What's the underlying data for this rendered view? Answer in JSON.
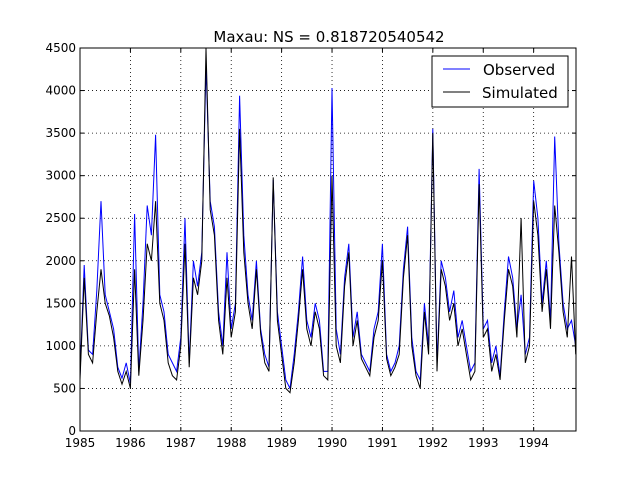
{
  "chart_data": {
    "type": "line",
    "title": "Maxau: NS = 0.818720540542",
    "xlabel": "",
    "ylabel": "",
    "xlim": [
      1985,
      1994.84
    ],
    "ylim": [
      0,
      4500
    ],
    "xticks": [
      "1985",
      "1986",
      "1987",
      "1988",
      "1989",
      "1990",
      "1991",
      "1992",
      "1993",
      "1994"
    ],
    "yticks": [
      "0",
      "500",
      "1000",
      "1500",
      "2000",
      "2500",
      "3000",
      "3500",
      "4000",
      "4500"
    ],
    "grid": true,
    "legend": "top-right",
    "resolution": "monthly",
    "series": [
      {
        "name": "Observed",
        "color": "#0000ff"
      },
      {
        "name": "Simulated",
        "color": "#000000"
      }
    ],
    "years": [
      {
        "year": 1985,
        "observed": [
          650,
          1950,
          950,
          900,
          1650,
          2700,
          1600,
          1400,
          1200,
          750,
          620,
          800
        ],
        "simulated": [
          600,
          1800,
          900,
          800,
          1400,
          1900,
          1500,
          1350,
          1100,
          700,
          550,
          700
        ]
      },
      {
        "year": 1986,
        "observed": [
          560,
          2550,
          700,
          1500,
          2650,
          2300,
          3480,
          1600,
          1400,
          900,
          800,
          700
        ],
        "simulated": [
          500,
          1900,
          650,
          1300,
          2200,
          2000,
          2700,
          1500,
          1300,
          800,
          650,
          600
        ]
      },
      {
        "year": 1987,
        "observed": [
          1100,
          2500,
          800,
          2000,
          1700,
          2100,
          4300,
          2700,
          2400,
          1400,
          1000,
          2100
        ],
        "simulated": [
          1000,
          2200,
          750,
          1800,
          1600,
          2000,
          4500,
          2600,
          2300,
          1300,
          900,
          1800
        ]
      },
      {
        "year": 1988,
        "observed": [
          1200,
          1500,
          3940,
          2300,
          1600,
          1300,
          2000,
          1200,
          900,
          750,
          2950,
          1400
        ],
        "simulated": [
          1100,
          1400,
          3550,
          2100,
          1500,
          1200,
          1900,
          1150,
          800,
          700,
          2980,
          1300
        ]
      },
      {
        "year": 1989,
        "observed": [
          1000,
          600,
          500,
          900,
          1400,
          2050,
          1300,
          1100,
          1500,
          1300,
          700,
          700
        ],
        "simulated": [
          900,
          500,
          450,
          800,
          1300,
          1900,
          1200,
          1000,
          1400,
          1200,
          650,
          600
        ]
      },
      {
        "year": 1990,
        "observed": [
          4030,
          1200,
          900,
          1800,
          2200,
          1100,
          1400,
          900,
          800,
          700,
          1200,
          1400
        ],
        "simulated": [
          3000,
          1000,
          800,
          1700,
          2100,
          1000,
          1300,
          850,
          750,
          650,
          1100,
          1300
        ]
      },
      {
        "year": 1991,
        "observed": [
          2200,
          900,
          700,
          800,
          1000,
          1900,
          2400,
          1100,
          700,
          600,
          1500,
          1000
        ],
        "simulated": [
          2000,
          850,
          650,
          750,
          900,
          1800,
          2300,
          1000,
          650,
          500,
          1400,
          900
        ]
      },
      {
        "year": 1992,
        "observed": [
          3550,
          800,
          2000,
          1800,
          1400,
          1650,
          1100,
          1300,
          1000,
          700,
          800,
          3080
        ],
        "simulated": [
          3500,
          700,
          1900,
          1700,
          1300,
          1500,
          1000,
          1200,
          900,
          600,
          700,
          2900
        ]
      },
      {
        "year": 1993,
        "observed": [
          1200,
          1300,
          800,
          1000,
          650,
          1400,
          2050,
          1800,
          1200,
          1600,
          900,
          1100
        ],
        "simulated": [
          1100,
          1200,
          700,
          900,
          600,
          1300,
          1900,
          1700,
          1100,
          2500,
          800,
          1000
        ]
      },
      {
        "year": 1994,
        "observed": [
          2940,
          2500,
          1500,
          2000,
          1300,
          3460,
          2200,
          1500,
          1200,
          1300,
          1000
        ],
        "simulated": [
          2700,
          2300,
          1400,
          1900,
          1200,
          2650,
          2100,
          1400,
          1100,
          2050,
          900
        ]
      }
    ]
  }
}
